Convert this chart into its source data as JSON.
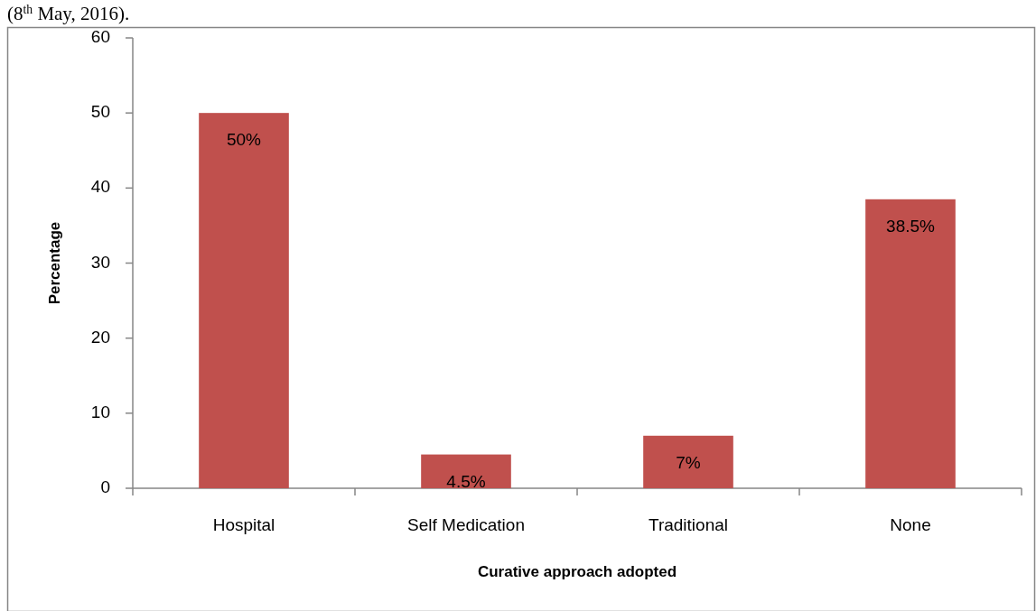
{
  "chart_data": {
    "type": "bar",
    "annotations": [
      "(8$^{th}$ May, 2016)."
    ],
    "xlabel": "Curative approach adopted",
    "ylabel": "Percentage",
    "categories": [
      "Hospital",
      "Self Medication",
      "Traditional",
      "None"
    ],
    "values": [
      50,
      4.5,
      7,
      38.5
    ],
    "color": "#c0504d",
    "value_labels": [
      "50%",
      "4.5%",
      "7%",
      "38.5%"
    ],
    "ylim": [
      0,
      60
    ],
    "yticks": [
      0,
      10,
      20,
      30,
      40,
      50,
      60
    ]
  }
}
